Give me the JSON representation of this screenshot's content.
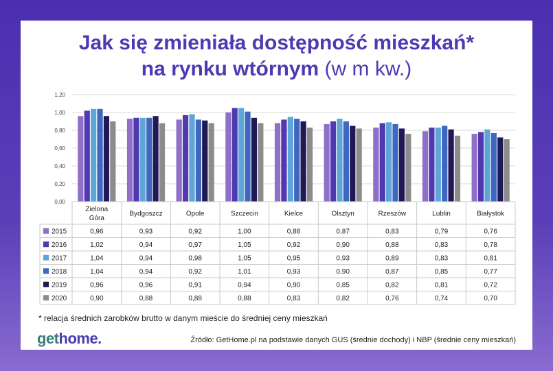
{
  "title_line1": "Jak się zmieniała dostępność mieszkań*",
  "title_line2_bold": "na rynku wtórnym",
  "title_line2_light": "(w m kw.)",
  "footnote": "* relacja średnich zarobków brutto w danym mieście do średniej ceny mieszkań",
  "logo_get": "get",
  "logo_home": "home.",
  "source": "Źródło: GetHome.pl na podstawie danych GUS (średnie dochody) i NBP (średnie ceny mieszkań)",
  "colors": {
    "2015": "#8f6fc7",
    "2016": "#5038b0",
    "2017": "#5ea5d8",
    "2018": "#3f67bf",
    "2019": "#1f1a55",
    "2020": "#8c8c8c"
  },
  "chart_data": {
    "type": "bar",
    "categories": [
      "Zielona Góra",
      "Bydgoszcz",
      "Opole",
      "Szczecin",
      "Kielce",
      "Olsztyn",
      "Rzeszów",
      "Lublin",
      "Białystok"
    ],
    "category_display": [
      [
        "Zielona",
        "Góra"
      ],
      [
        "Bydgoszcz"
      ],
      [
        "Opole"
      ],
      [
        "Szczecin"
      ],
      [
        "Kielce"
      ],
      [
        "Olsztyn"
      ],
      [
        "Rzeszów"
      ],
      [
        "Lublin"
      ],
      [
        "Białystok"
      ]
    ],
    "series": [
      {
        "name": "2015",
        "values": [
          0.96,
          0.93,
          0.92,
          1.0,
          0.88,
          0.87,
          0.83,
          0.79,
          0.76
        ],
        "labels": [
          "0,96",
          "0,93",
          "0,92",
          "1,00",
          "0,88",
          "0,87",
          "0,83",
          "0,79",
          "0,76"
        ]
      },
      {
        "name": "2016",
        "values": [
          1.02,
          0.94,
          0.97,
          1.05,
          0.92,
          0.9,
          0.88,
          0.83,
          0.78
        ],
        "labels": [
          "1,02",
          "0,94",
          "0,97",
          "1,05",
          "0,92",
          "0,90",
          "0,88",
          "0,83",
          "0,78"
        ]
      },
      {
        "name": "2017",
        "values": [
          1.04,
          0.94,
          0.98,
          1.05,
          0.95,
          0.93,
          0.89,
          0.83,
          0.81
        ],
        "labels": [
          "1,04",
          "0,94",
          "0,98",
          "1,05",
          "0,95",
          "0,93",
          "0,89",
          "0,83",
          "0,81"
        ]
      },
      {
        "name": "2018",
        "values": [
          1.04,
          0.94,
          0.92,
          1.01,
          0.93,
          0.9,
          0.87,
          0.85,
          0.77
        ],
        "labels": [
          "1,04",
          "0,94",
          "0,92",
          "1,01",
          "0,93",
          "0,90",
          "0,87",
          "0,85",
          "0,77"
        ]
      },
      {
        "name": "2019",
        "values": [
          0.96,
          0.96,
          0.91,
          0.94,
          0.9,
          0.85,
          0.82,
          0.81,
          0.72
        ],
        "labels": [
          "0,96",
          "0,96",
          "0,91",
          "0,94",
          "0,90",
          "0,85",
          "0,82",
          "0,81",
          "0,72"
        ]
      },
      {
        "name": "2020",
        "values": [
          0.9,
          0.88,
          0.88,
          0.88,
          0.83,
          0.82,
          0.76,
          0.74,
          0.7
        ],
        "labels": [
          "0,90",
          "0,88",
          "0,88",
          "0,88",
          "0,83",
          "0,82",
          "0,76",
          "0,74",
          "0,70"
        ]
      }
    ],
    "ylim": [
      0,
      1.2
    ],
    "yticks": [
      "0,00",
      "0,20",
      "0,40",
      "0,60",
      "0,80",
      "1,00",
      "1,20"
    ],
    "ytick_values": [
      0,
      0.2,
      0.4,
      0.6,
      0.8,
      1.0,
      1.2
    ],
    "grid": true,
    "legend": "data table below chart"
  }
}
